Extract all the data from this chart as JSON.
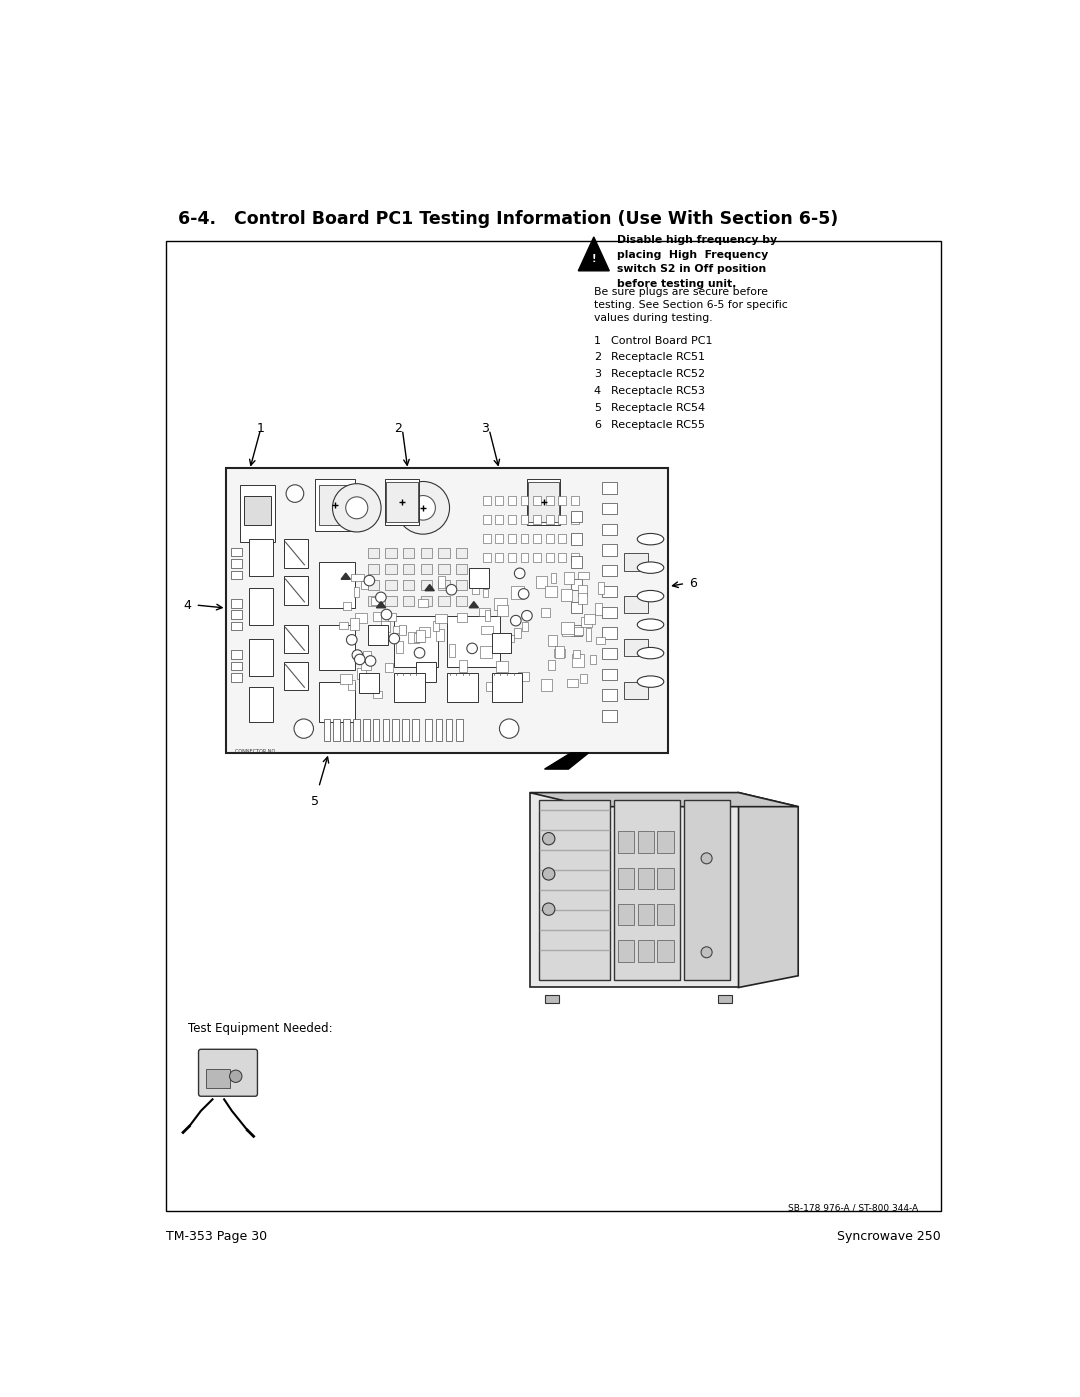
{
  "title": "6-4.   Control Board PC1 Testing Information (Use With Section 6-5)",
  "title_fontsize": 12.5,
  "warning_bold_text": "Disable high frequency by\nplacing  High  Frequency\nswitch S2 in Off position\nbefore testing unit.",
  "warning_normal_text": "Be sure plugs are secure before\ntesting. See Section 6-5 for specific\nvalues during testing.",
  "items": [
    [
      "1",
      "Control Board PC1"
    ],
    [
      "2",
      "Receptacle RC51"
    ],
    [
      "3",
      "Receptacle RC52"
    ],
    [
      "4",
      "Receptacle RC53"
    ],
    [
      "5",
      "Receptacle RC54"
    ],
    [
      "6",
      "Receptacle RC55"
    ]
  ],
  "test_equip_label": "Test Equipment Needed:",
  "footer_left": "TM-353 Page 30",
  "footer_right": "Syncrowave 250",
  "ref_code": "SB-178 976-A / ST-800 344-A",
  "bg_color": "#ffffff",
  "border_color": "#000000",
  "text_color": "#000000",
  "pcb_color": "#f5f5f5",
  "pcb_border": "#222222"
}
